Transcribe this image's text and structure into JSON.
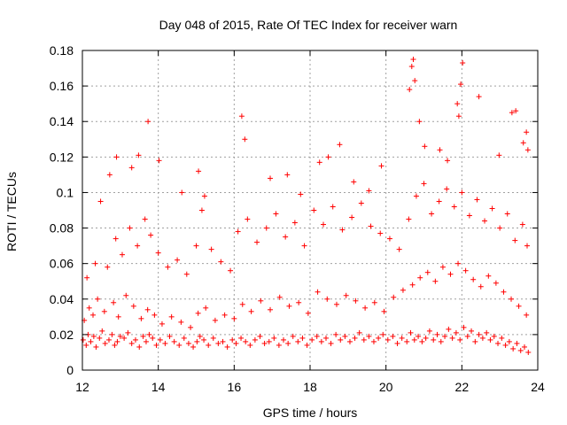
{
  "chart_data": {
    "type": "scatter",
    "title": "Day 048 of 2015, Rate Of TEC Index for receiver warn",
    "xlabel": "GPS time / hours",
    "ylabel": "ROTI / TECUs",
    "xlim": [
      12,
      24
    ],
    "ylim": [
      0,
      0.18
    ],
    "x_ticks": [
      12,
      14,
      16,
      18,
      20,
      22,
      24
    ],
    "x_tick_labels": [
      "12",
      "14",
      "16",
      "18",
      "20",
      "22",
      "24"
    ],
    "y_ticks": [
      0,
      0.02,
      0.04,
      0.06,
      0.08,
      0.1,
      0.12,
      0.14,
      0.16,
      0.18
    ],
    "y_tick_labels": [
      "0",
      "0.02",
      "0.04",
      "0.06",
      "0.08",
      "0.1",
      "0.12",
      "0.14",
      "0.16",
      "0.18"
    ],
    "grid": true,
    "marker": "+",
    "color": "#ff0000",
    "series": [
      {
        "name": "ROTI",
        "x": [
          12.02,
          12.1,
          12.15,
          12.22,
          12.3,
          12.36,
          12.45,
          12.52,
          12.6,
          12.7,
          12.78,
          12.85,
          12.92,
          13.0,
          13.1,
          13.2,
          13.3,
          13.4,
          13.5,
          13.6,
          13.68,
          13.76,
          13.85,
          13.95,
          14.05,
          14.18,
          14.3,
          14.42,
          14.55,
          14.68,
          14.8,
          14.92,
          15.02,
          15.1,
          15.2,
          15.32,
          15.45,
          15.58,
          15.7,
          15.82,
          15.95,
          16.05,
          16.18,
          16.3,
          16.42,
          16.55,
          16.68,
          16.8,
          16.92,
          17.05,
          17.18,
          17.3,
          17.42,
          17.55,
          17.68,
          17.8,
          17.92,
          18.05,
          18.18,
          18.3,
          18.42,
          18.55,
          18.68,
          18.8,
          18.92,
          19.05,
          19.18,
          19.3,
          19.42,
          19.55,
          19.68,
          19.8,
          19.92,
          20.05,
          20.18,
          20.3,
          20.42,
          20.55,
          20.65,
          20.75,
          20.85,
          20.95,
          21.05,
          21.15,
          21.25,
          21.35,
          21.45,
          21.55,
          21.65,
          21.75,
          21.85,
          21.95,
          22.05,
          22.15,
          22.25,
          22.35,
          22.45,
          22.55,
          22.65,
          22.75,
          22.85,
          22.95,
          23.05,
          23.15,
          23.25,
          23.35,
          23.45,
          23.55,
          23.65,
          23.75,
          12.05,
          12.18,
          12.28,
          12.4,
          12.58,
          12.82,
          12.95,
          13.15,
          13.35,
          13.55,
          13.72,
          13.9,
          14.1,
          14.35,
          14.6,
          14.85,
          15.05,
          15.25,
          15.5,
          15.75,
          16.0,
          16.22,
          16.45,
          16.7,
          16.95,
          17.2,
          17.45,
          17.7,
          17.95,
          18.2,
          18.45,
          18.7,
          18.95,
          19.2,
          19.45,
          19.7,
          19.95,
          20.2,
          20.45,
          20.7,
          20.9,
          21.1,
          21.3,
          21.5,
          21.7,
          21.9,
          22.1,
          22.3,
          22.5,
          22.7,
          22.9,
          23.1,
          23.3,
          23.5,
          23.7,
          12.12,
          12.34,
          12.66,
          12.88,
          13.05,
          13.25,
          13.45,
          13.65,
          13.8,
          14.0,
          14.25,
          14.5,
          14.75,
          15.0,
          15.15,
          15.4,
          15.65,
          15.9,
          16.1,
          16.35,
          16.6,
          16.85,
          17.1,
          17.35,
          17.6,
          17.85,
          18.1,
          18.35,
          18.6,
          18.85,
          19.1,
          19.35,
          19.6,
          19.85,
          20.1,
          20.35,
          20.6,
          20.8,
          21.0,
          21.2,
          21.4,
          21.6,
          21.8,
          22.0,
          22.2,
          22.4,
          22.6,
          22.8,
          23.0,
          23.2,
          23.4,
          23.6,
          23.72,
          12.48,
          12.72,
          12.9,
          13.3,
          13.48,
          13.73,
          14.02,
          14.62,
          15.06,
          15.22,
          16.2,
          16.28,
          16.95,
          17.4,
          17.75,
          18.25,
          18.48,
          18.78,
          19.15,
          19.55,
          19.88,
          20.62,
          20.68,
          20.72,
          20.76,
          20.88,
          21.02,
          21.42,
          21.62,
          21.88,
          21.92,
          21.97,
          22.02,
          22.45,
          22.98,
          23.32,
          23.42,
          23.62,
          23.7,
          23.74
        ],
        "y": [
          0.017,
          0.014,
          0.02,
          0.016,
          0.019,
          0.013,
          0.018,
          0.022,
          0.015,
          0.017,
          0.02,
          0.014,
          0.016,
          0.019,
          0.018,
          0.021,
          0.015,
          0.017,
          0.013,
          0.019,
          0.016,
          0.02,
          0.018,
          0.014,
          0.017,
          0.015,
          0.019,
          0.016,
          0.014,
          0.018,
          0.015,
          0.013,
          0.016,
          0.019,
          0.017,
          0.014,
          0.018,
          0.015,
          0.016,
          0.013,
          0.017,
          0.015,
          0.018,
          0.016,
          0.014,
          0.017,
          0.019,
          0.015,
          0.016,
          0.018,
          0.014,
          0.017,
          0.015,
          0.019,
          0.016,
          0.018,
          0.014,
          0.017,
          0.019,
          0.016,
          0.018,
          0.015,
          0.02,
          0.017,
          0.019,
          0.016,
          0.018,
          0.021,
          0.017,
          0.019,
          0.016,
          0.018,
          0.02,
          0.017,
          0.019,
          0.015,
          0.018,
          0.016,
          0.021,
          0.017,
          0.019,
          0.016,
          0.018,
          0.022,
          0.017,
          0.02,
          0.016,
          0.019,
          0.023,
          0.018,
          0.021,
          0.017,
          0.024,
          0.019,
          0.022,
          0.016,
          0.02,
          0.018,
          0.021,
          0.017,
          0.019,
          0.015,
          0.018,
          0.014,
          0.016,
          0.012,
          0.015,
          0.011,
          0.013,
          0.01,
          0.028,
          0.035,
          0.031,
          0.04,
          0.033,
          0.038,
          0.03,
          0.042,
          0.036,
          0.029,
          0.034,
          0.031,
          0.026,
          0.03,
          0.027,
          0.024,
          0.032,
          0.035,
          0.028,
          0.031,
          0.029,
          0.037,
          0.033,
          0.039,
          0.034,
          0.041,
          0.036,
          0.038,
          0.032,
          0.044,
          0.04,
          0.037,
          0.042,
          0.039,
          0.035,
          0.038,
          0.033,
          0.041,
          0.045,
          0.048,
          0.052,
          0.055,
          0.05,
          0.058,
          0.054,
          0.06,
          0.056,
          0.051,
          0.047,
          0.053,
          0.049,
          0.044,
          0.04,
          0.036,
          0.031,
          0.052,
          0.06,
          0.058,
          0.074,
          0.065,
          0.08,
          0.07,
          0.085,
          0.076,
          0.066,
          0.058,
          0.062,
          0.054,
          0.07,
          0.09,
          0.068,
          0.061,
          0.056,
          0.078,
          0.085,
          0.072,
          0.08,
          0.088,
          0.075,
          0.083,
          0.07,
          0.09,
          0.082,
          0.092,
          0.079,
          0.086,
          0.094,
          0.081,
          0.077,
          0.074,
          0.068,
          0.085,
          0.098,
          0.105,
          0.088,
          0.095,
          0.102,
          0.092,
          0.1,
          0.087,
          0.096,
          0.084,
          0.091,
          0.08,
          0.088,
          0.073,
          0.082,
          0.07,
          0.095,
          0.11,
          0.12,
          0.114,
          0.121,
          0.14,
          0.118,
          0.1,
          0.112,
          0.098,
          0.143,
          0.13,
          0.108,
          0.11,
          0.099,
          0.117,
          0.12,
          0.127,
          0.106,
          0.101,
          0.115,
          0.158,
          0.171,
          0.175,
          0.163,
          0.14,
          0.126,
          0.124,
          0.118,
          0.15,
          0.143,
          0.161,
          0.173,
          0.154,
          0.121,
          0.145,
          0.146,
          0.128,
          0.134,
          0.124
        ]
      }
    ]
  }
}
